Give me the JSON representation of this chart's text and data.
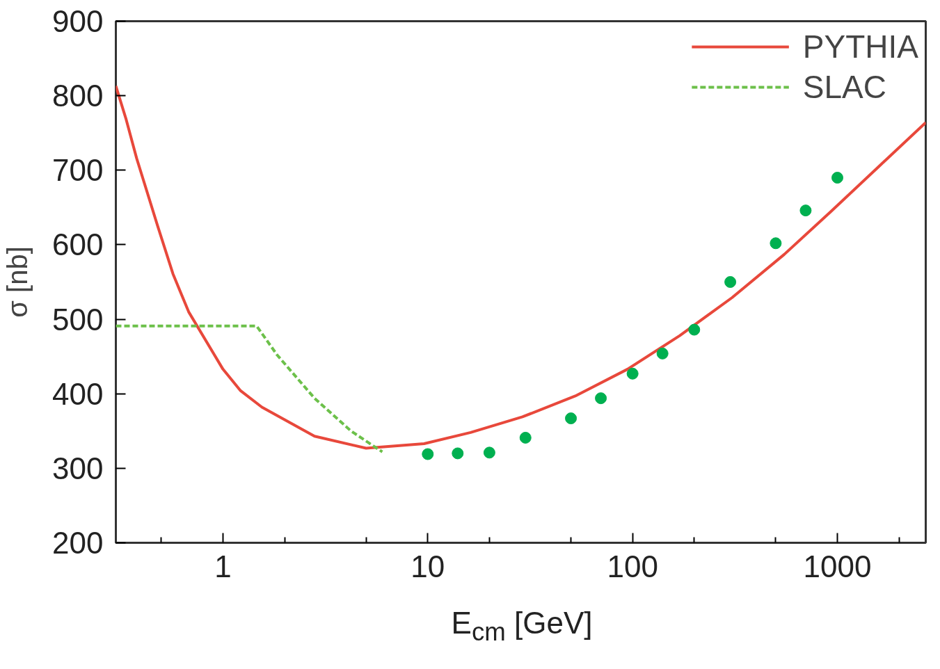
{
  "chart_data": {
    "type": "line",
    "xlabel": "E$_{cm}$ [GeV]",
    "ylabel": "σ [nb]",
    "log": "x",
    "xlim": [
      0.3,
      2700
    ],
    "ylim": [
      200,
      900
    ],
    "xticks": [
      {
        "value": 0.5,
        "label": null
      },
      1,
      {
        "value": 2,
        "label": null
      },
      {
        "value": 5,
        "label": null
      },
      10,
      {
        "value": 20,
        "label": null
      },
      {
        "value": 50,
        "label": null
      },
      100,
      {
        "value": 200,
        "label": null
      },
      {
        "value": 500,
        "label": null
      },
      1000,
      {
        "value": 2000,
        "label": null
      }
    ],
    "yticks": [
      200,
      300,
      400,
      500,
      600,
      700,
      800,
      900
    ],
    "grid": false,
    "legend": "top right",
    "series": [
      {
        "name": "PYTHIA",
        "color": "#e8483b",
        "line_style": "solid",
        "x": [
          0.3,
          0.337,
          0.379,
          0.479,
          0.57,
          0.68,
          1,
          1.22,
          1.55,
          2.8,
          5,
          9.6,
          16.2,
          29,
          52.5,
          94.5,
          170,
          306,
          550,
          933,
          1580,
          2700
        ],
        "values": [
          813,
          768,
          716,
          626,
          561,
          510,
          433,
          404,
          382,
          343,
          327,
          333,
          348,
          369,
          397,
          433,
          478,
          529,
          587,
          645,
          704,
          764
        ]
      },
      {
        "name": "SLAC",
        "color": "#6cc04a",
        "line_style": "dashed",
        "x": [
          0.3,
          1.46,
          1.84,
          2.8,
          4.22,
          6
        ],
        "values": [
          491,
          491,
          452,
          394,
          350,
          322
        ]
      },
      {
        "color": "#00b050",
        "type": "scatter",
        "marker": "circle",
        "x": [
          10,
          14,
          20,
          30,
          50,
          70,
          100,
          140,
          200,
          300,
          500,
          700,
          1000
        ],
        "values": [
          319,
          320,
          321,
          341,
          367,
          394,
          427,
          454,
          486,
          550,
          602,
          646,
          690
        ]
      }
    ]
  }
}
